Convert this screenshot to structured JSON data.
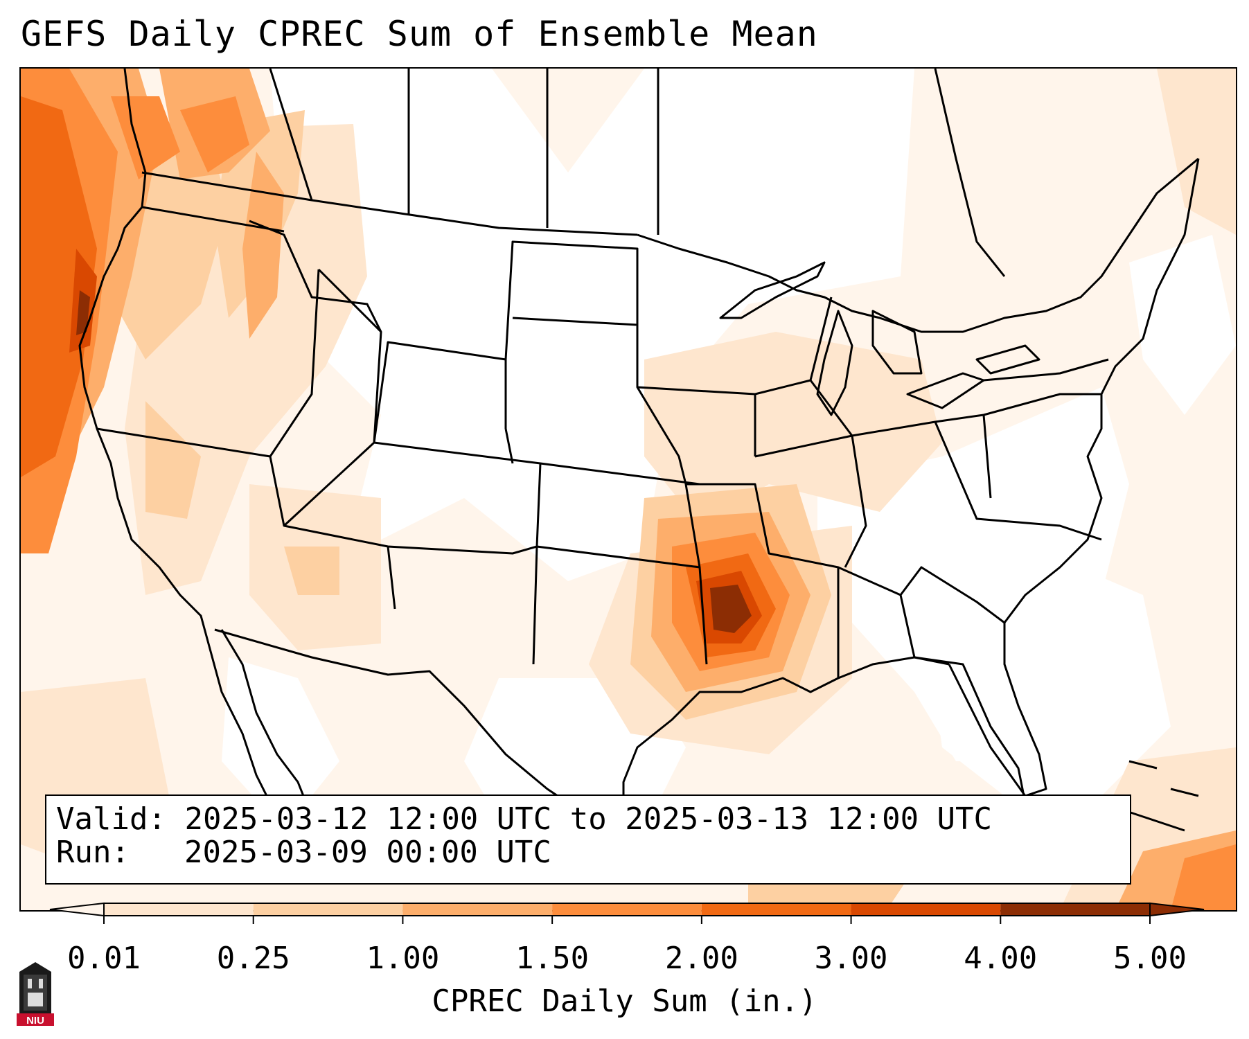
{
  "title": "GEFS Daily CPREC Sum of Ensemble Mean",
  "info": {
    "valid_label": "Valid:",
    "valid_value": "2025-03-12 12:00 UTC to 2025-03-13 12:00 UTC",
    "run_label": "Run:",
    "run_value": "2025-03-09 00:00 UTC"
  },
  "colorbar": {
    "label": "CPREC Daily Sum (in.)",
    "ticks": [
      "0.01",
      "0.25",
      "1.00",
      "1.50",
      "2.00",
      "3.00",
      "4.00",
      "5.00"
    ],
    "colors": [
      "#fff5eb",
      "#fee6ce",
      "#fdd0a2",
      "#fdae6b",
      "#fd8d3c",
      "#f16913",
      "#d94801",
      "#8c2d04"
    ],
    "extend": "both"
  },
  "logo": {
    "text": "NIU",
    "icon": "university-building-icon"
  },
  "map": {
    "region": "CONUS",
    "colors": {
      "very_light": "#fff5eb",
      "light": "#fee6ce",
      "light_medium": "#fdd0a2",
      "medium": "#fdae6b",
      "medium_dark": "#fd8d3c",
      "dark": "#f16913",
      "darker": "#d94801",
      "darkest": "#8c2d04"
    }
  }
}
